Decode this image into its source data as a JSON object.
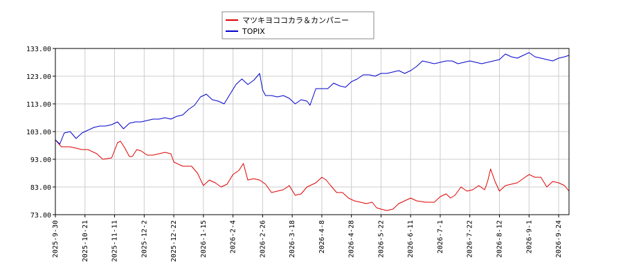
{
  "chart_data": {
    "type": "line",
    "title": "",
    "xlabel": "",
    "ylabel": "",
    "grid": true,
    "legend_position": "top-center",
    "ylim": [
      73.0,
      133.0
    ],
    "y_ticks": [
      "73.00",
      "83.00",
      "93.00",
      "103.00",
      "113.00",
      "123.00",
      "133.00"
    ],
    "x_ticks": [
      "2025-9-30",
      "2025-10-21",
      "2025-11-11",
      "2025-12-2",
      "2025-12-22",
      "2026-1-15",
      "2026-2-4",
      "2026-2-26",
      "2026-3-18",
      "2026-4-8",
      "2026-4-28",
      "2026-5-22",
      "2026-6-11",
      "2026-7-1",
      "2026-7-22",
      "2026-8-12",
      "2026-9-1",
      "2026-9-24"
    ],
    "series": [
      {
        "name": "マツキヨココカラ＆カンパニー",
        "color": "#dd0000",
        "anchors": [
          [
            0,
            100.0
          ],
          [
            0.2,
            97.5
          ],
          [
            0.5,
            97.5
          ],
          [
            0.9,
            96.5
          ],
          [
            1.1,
            96.5
          ],
          [
            1.4,
            95.0
          ],
          [
            1.6,
            93.0
          ],
          [
            1.9,
            93.5
          ],
          [
            2.1,
            99.0
          ],
          [
            2.2,
            99.5
          ],
          [
            2.35,
            97.0
          ],
          [
            2.5,
            94.0
          ],
          [
            2.6,
            94.0
          ],
          [
            2.75,
            96.5
          ],
          [
            2.9,
            96.0
          ],
          [
            3.1,
            94.5
          ],
          [
            3.3,
            94.5
          ],
          [
            3.5,
            95.0
          ],
          [
            3.7,
            95.5
          ],
          [
            3.9,
            95.0
          ],
          [
            4.0,
            92.0
          ],
          [
            4.3,
            90.5
          ],
          [
            4.6,
            90.5
          ],
          [
            4.8,
            88.0
          ],
          [
            5.0,
            83.5
          ],
          [
            5.2,
            85.5
          ],
          [
            5.4,
            84.5
          ],
          [
            5.6,
            83.0
          ],
          [
            5.8,
            84.0
          ],
          [
            6.0,
            87.5
          ],
          [
            6.2,
            89.0
          ],
          [
            6.35,
            91.5
          ],
          [
            6.5,
            85.5
          ],
          [
            6.7,
            86.0
          ],
          [
            6.9,
            85.5
          ],
          [
            7.1,
            84.0
          ],
          [
            7.3,
            81.0
          ],
          [
            7.5,
            81.5
          ],
          [
            7.7,
            82.0
          ],
          [
            7.9,
            83.5
          ],
          [
            8.1,
            80.0
          ],
          [
            8.3,
            80.5
          ],
          [
            8.5,
            83.0
          ],
          [
            8.8,
            84.5
          ],
          [
            9.0,
            86.5
          ],
          [
            9.15,
            85.5
          ],
          [
            9.3,
            83.5
          ],
          [
            9.5,
            81.0
          ],
          [
            9.7,
            81.0
          ],
          [
            9.9,
            79.0
          ],
          [
            10.1,
            78.0
          ],
          [
            10.3,
            77.5
          ],
          [
            10.5,
            77.0
          ],
          [
            10.7,
            77.5
          ],
          [
            10.85,
            75.5
          ],
          [
            11.0,
            75.0
          ],
          [
            11.2,
            74.5
          ],
          [
            11.4,
            75.0
          ],
          [
            11.6,
            77.0
          ],
          [
            11.8,
            78.0
          ],
          [
            12.0,
            79.0
          ],
          [
            12.2,
            78.0
          ],
          [
            12.5,
            77.5
          ],
          [
            12.8,
            77.5
          ],
          [
            13.0,
            79.5
          ],
          [
            13.2,
            80.5
          ],
          [
            13.35,
            79.0
          ],
          [
            13.5,
            80.0
          ],
          [
            13.7,
            83.0
          ],
          [
            13.9,
            81.5
          ],
          [
            14.1,
            82.0
          ],
          [
            14.3,
            83.5
          ],
          [
            14.5,
            82.0
          ],
          [
            14.6,
            85.0
          ],
          [
            14.7,
            89.5
          ],
          [
            14.85,
            85.0
          ],
          [
            15.0,
            81.5
          ],
          [
            15.2,
            83.5
          ],
          [
            15.4,
            84.0
          ],
          [
            15.6,
            84.5
          ],
          [
            15.8,
            86.0
          ],
          [
            16.0,
            87.5
          ],
          [
            16.2,
            86.5
          ],
          [
            16.4,
            86.5
          ],
          [
            16.6,
            83.0
          ],
          [
            16.8,
            85.0
          ],
          [
            17.0,
            84.5
          ],
          [
            17.2,
            83.5
          ],
          [
            17.35,
            81.5
          ]
        ]
      },
      {
        "name": "TOPIX",
        "color": "#0000cc",
        "anchors": [
          [
            0,
            100.0
          ],
          [
            0.15,
            98.5
          ],
          [
            0.3,
            102.5
          ],
          [
            0.5,
            103.0
          ],
          [
            0.7,
            100.5
          ],
          [
            0.9,
            102.5
          ],
          [
            1.1,
            103.5
          ],
          [
            1.3,
            104.5
          ],
          [
            1.5,
            105.0
          ],
          [
            1.7,
            105.0
          ],
          [
            1.9,
            105.5
          ],
          [
            2.1,
            106.5
          ],
          [
            2.3,
            104.0
          ],
          [
            2.5,
            106.0
          ],
          [
            2.7,
            106.5
          ],
          [
            2.9,
            106.5
          ],
          [
            3.1,
            107.0
          ],
          [
            3.3,
            107.5
          ],
          [
            3.5,
            107.5
          ],
          [
            3.7,
            108.0
          ],
          [
            3.9,
            107.5
          ],
          [
            4.1,
            108.5
          ],
          [
            4.3,
            109.0
          ],
          [
            4.5,
            111.0
          ],
          [
            4.7,
            112.5
          ],
          [
            4.9,
            115.5
          ],
          [
            5.1,
            116.5
          ],
          [
            5.3,
            114.5
          ],
          [
            5.5,
            114.0
          ],
          [
            5.7,
            113.0
          ],
          [
            5.9,
            116.5
          ],
          [
            6.1,
            120.0
          ],
          [
            6.3,
            122.0
          ],
          [
            6.5,
            120.0
          ],
          [
            6.7,
            121.5
          ],
          [
            6.9,
            124.0
          ],
          [
            7.0,
            118.0
          ],
          [
            7.1,
            116.0
          ],
          [
            7.3,
            116.0
          ],
          [
            7.5,
            115.5
          ],
          [
            7.7,
            116.0
          ],
          [
            7.9,
            115.0
          ],
          [
            8.1,
            113.0
          ],
          [
            8.3,
            114.5
          ],
          [
            8.5,
            114.0
          ],
          [
            8.6,
            112.5
          ],
          [
            8.8,
            118.5
          ],
          [
            9.0,
            118.5
          ],
          [
            9.2,
            118.5
          ],
          [
            9.4,
            120.5
          ],
          [
            9.6,
            119.5
          ],
          [
            9.8,
            119.0
          ],
          [
            10.0,
            121.0
          ],
          [
            10.2,
            122.0
          ],
          [
            10.4,
            123.5
          ],
          [
            10.6,
            123.5
          ],
          [
            10.8,
            123.0
          ],
          [
            11.0,
            124.0
          ],
          [
            11.2,
            124.0
          ],
          [
            11.4,
            124.5
          ],
          [
            11.6,
            125.0
          ],
          [
            11.8,
            124.0
          ],
          [
            12.0,
            125.0
          ],
          [
            12.2,
            126.5
          ],
          [
            12.4,
            128.5
          ],
          [
            12.6,
            128.0
          ],
          [
            12.8,
            127.5
          ],
          [
            13.0,
            128.0
          ],
          [
            13.2,
            128.5
          ],
          [
            13.4,
            128.5
          ],
          [
            13.6,
            127.5
          ],
          [
            13.8,
            128.0
          ],
          [
            14.0,
            128.5
          ],
          [
            14.2,
            128.0
          ],
          [
            14.4,
            127.5
          ],
          [
            14.6,
            128.0
          ],
          [
            14.8,
            128.5
          ],
          [
            15.0,
            129.0
          ],
          [
            15.2,
            131.0
          ],
          [
            15.4,
            130.0
          ],
          [
            15.6,
            129.5
          ],
          [
            15.8,
            130.5
          ],
          [
            16.0,
            131.5
          ],
          [
            16.2,
            130.0
          ],
          [
            16.4,
            129.5
          ],
          [
            16.6,
            129.0
          ],
          [
            16.8,
            128.5
          ],
          [
            17.0,
            129.5
          ],
          [
            17.2,
            130.0
          ],
          [
            17.35,
            130.5
          ]
        ]
      }
    ]
  }
}
